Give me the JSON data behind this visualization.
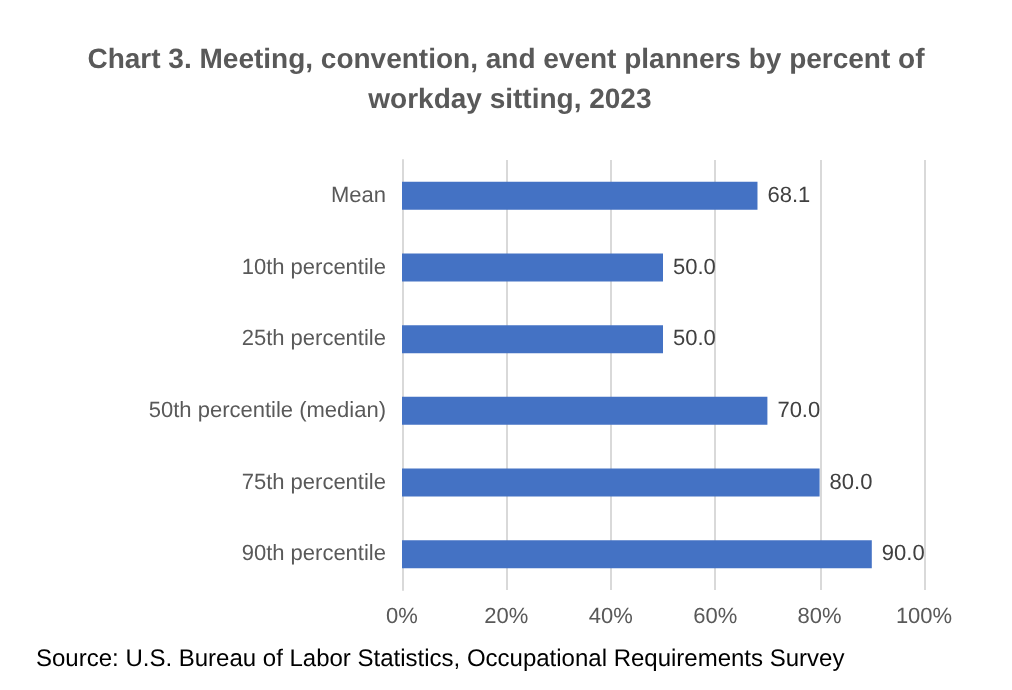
{
  "chart_data": {
    "type": "bar",
    "orientation": "horizontal",
    "title": "Chart 3. Meeting, convention, and event planners by percent of workday sitting, 2023",
    "categories": [
      "Mean",
      "10th percentile",
      "25th percentile",
      "50th percentile (median)",
      "75th percentile",
      "90th percentile"
    ],
    "values": [
      68.1,
      50.0,
      50.0,
      70.0,
      80.0,
      90.0
    ],
    "value_labels": [
      "68.1",
      "50.0",
      "50.0",
      "70.0",
      "80.0",
      "90.0"
    ],
    "color": "#4472c4",
    "xlim": [
      0,
      100
    ],
    "xticks": [
      {
        "value": 0,
        "label": "0%"
      },
      {
        "value": 20,
        "label": "20%"
      },
      {
        "value": 40,
        "label": "40%"
      },
      {
        "value": 60,
        "label": "60%"
      },
      {
        "value": 80,
        "label": "80%"
      },
      {
        "value": 100,
        "label": "100%"
      }
    ],
    "grid": "x",
    "annotations": [
      "Source: U.S. Bureau of Labor Statistics, Occupational Requirements Survey"
    ]
  }
}
